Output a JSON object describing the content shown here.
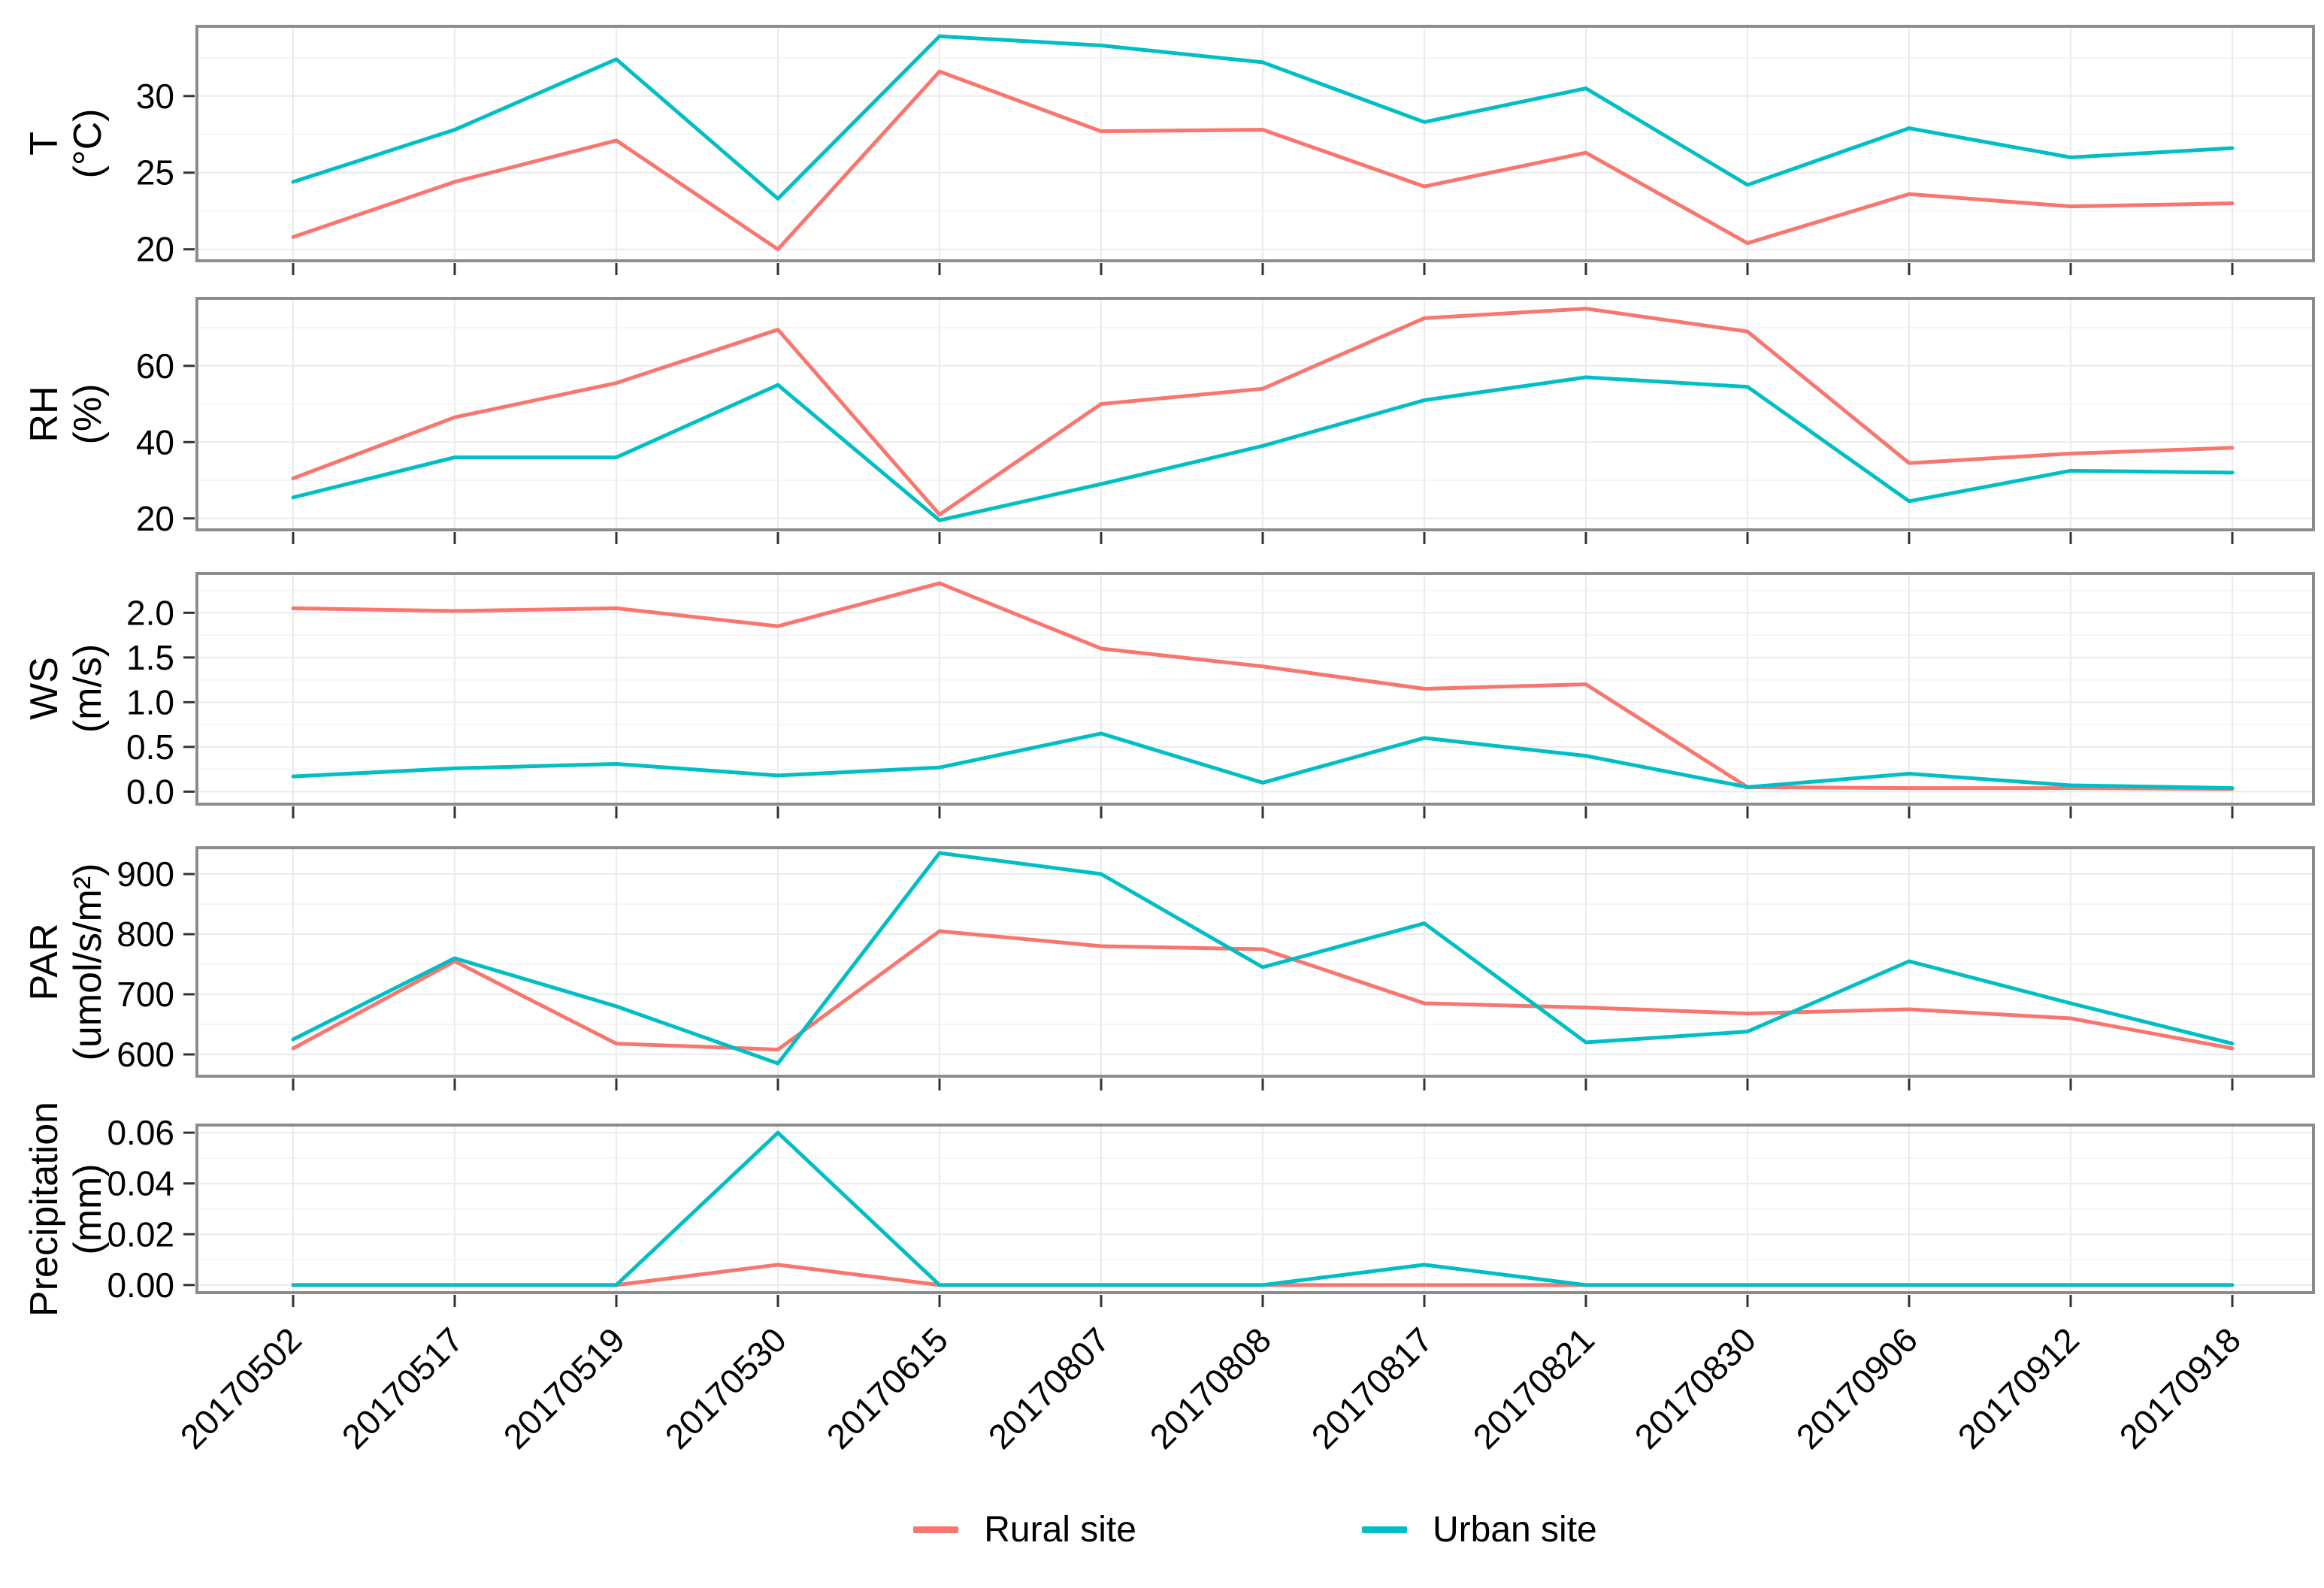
{
  "figure": {
    "background": "#ffffff",
    "panel_border_color": "#8c8c8c",
    "grid_major_color": "#ebebeb",
    "grid_minor_color": "#f5f5f5",
    "tick_color": "#333333"
  },
  "chart_data": {
    "type": "line",
    "x_label_rotation_deg": 45,
    "grid": "on",
    "legend_position": "bottom",
    "categories": [
      "20170502",
      "20170517",
      "20170519",
      "20170530",
      "20170615",
      "20170807",
      "20170808",
      "20170817",
      "20170821",
      "20170830",
      "20170906",
      "20170912",
      "20170918"
    ],
    "series_meta": [
      {
        "key": "rural",
        "name": "Rural site",
        "color": "#F8766D"
      },
      {
        "key": "urban",
        "name": "Urban site",
        "color": "#00BFC4"
      }
    ],
    "panels": [
      {
        "id": "temperature",
        "ylabel": "T",
        "unit": "(°C)",
        "yticks": [
          20,
          25,
          30
        ],
        "ylim": [
          19.25,
          34.55
        ],
        "values": {
          "rural": [
            20.8,
            24.4,
            27.1,
            20.0,
            31.6,
            27.7,
            27.8,
            24.1,
            26.3,
            20.4,
            23.6,
            22.8,
            23.0
          ],
          "urban": [
            24.4,
            27.8,
            32.4,
            23.3,
            33.9,
            33.3,
            32.2,
            28.3,
            30.5,
            24.2,
            27.9,
            26.0,
            26.6
          ]
        }
      },
      {
        "id": "relative-humidity",
        "ylabel": "RH",
        "unit": "(%)",
        "yticks": [
          20,
          40,
          60
        ],
        "ylim": [
          17.0,
          77.7
        ],
        "values": {
          "rural": [
            30.5,
            46.5,
            55.5,
            69.5,
            21.0,
            50.0,
            54.0,
            72.5,
            75.0,
            69.0,
            34.5,
            37.0,
            38.5
          ],
          "urban": [
            25.5,
            36.0,
            36.0,
            55.0,
            19.5,
            29.0,
            39.0,
            51.0,
            57.0,
            54.5,
            24.5,
            32.5,
            32.0
          ]
        }
      },
      {
        "id": "wind-speed",
        "ylabel": "WS",
        "unit": "(m/s)",
        "yticks": [
          0.0,
          0.5,
          1.0,
          1.5,
          2.0
        ],
        "ytick_labels": [
          "0.0",
          "0.5",
          "1.0",
          "1.5",
          "2.0"
        ],
        "ylim": [
          -0.14,
          2.44
        ],
        "values": {
          "rural": [
            2.05,
            2.02,
            2.05,
            1.85,
            2.33,
            1.6,
            1.4,
            1.15,
            1.2,
            0.05,
            0.04,
            0.04,
            0.03
          ],
          "urban": [
            0.17,
            0.26,
            0.31,
            0.18,
            0.27,
            0.65,
            0.1,
            0.6,
            0.4,
            0.05,
            0.2,
            0.07,
            0.04
          ]
        }
      },
      {
        "id": "par",
        "ylabel": "PAR",
        "unit": "(umol/s/m²)",
        "yticks": [
          600,
          700,
          800,
          900
        ],
        "ylim": [
          563.75,
          943.75
        ],
        "values": {
          "rural": [
            610,
            755,
            618,
            608,
            805,
            780,
            775,
            685,
            678,
            668,
            675,
            660,
            610
          ],
          "urban": [
            625,
            760,
            680,
            585,
            935,
            900,
            745,
            818,
            620,
            638,
            755,
            685,
            618
          ]
        }
      },
      {
        "id": "precipitation",
        "ylabel": "Precipitation",
        "unit": "(mm)",
        "yticks": [
          0.0,
          0.02,
          0.04,
          0.06
        ],
        "ytick_labels": [
          "0.00",
          "0.02",
          "0.04",
          "0.06"
        ],
        "ylim": [
          -0.003,
          0.063
        ],
        "values": {
          "rural": [
            0,
            0,
            0,
            0.008,
            0,
            0,
            0,
            0,
            0,
            0,
            0,
            0,
            0
          ],
          "urban": [
            0,
            0,
            0,
            0.06,
            0,
            0,
            0,
            0.008,
            0,
            0,
            0,
            0,
            0
          ]
        }
      }
    ],
    "legend": [
      {
        "label": "Rural site"
      },
      {
        "label": "Urban site"
      }
    ]
  }
}
